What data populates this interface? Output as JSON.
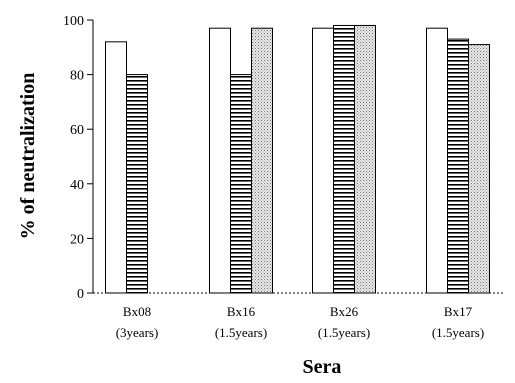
{
  "chart_data": {
    "type": "bar",
    "title": "",
    "xlabel": "Sera",
    "ylabel": "% of neutralization",
    "ylim": [
      0,
      100
    ],
    "yticks": [
      0,
      20,
      40,
      60,
      80,
      100
    ],
    "grid": false,
    "legend": "none",
    "categories": [
      {
        "line1": "Bx08",
        "line2": "(3years)"
      },
      {
        "line1": "Bx16",
        "line2": "(1.5years)"
      },
      {
        "line1": "Bx26",
        "line2": "(1.5years)"
      },
      {
        "line1": "Bx17",
        "line2": "(1.5years)"
      }
    ],
    "series": [
      {
        "pattern": "open",
        "values": [
          92,
          97,
          97,
          97
        ]
      },
      {
        "pattern": "horizontal-lines",
        "values": [
          80,
          80,
          98,
          93
        ]
      },
      {
        "pattern": "dotted",
        "values": [
          null,
          97,
          98,
          91
        ]
      }
    ]
  }
}
